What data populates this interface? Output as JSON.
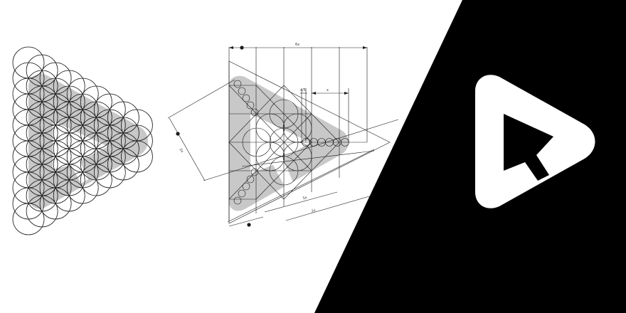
{
  "colors": {
    "background": "#ffffff",
    "panel_dark": "#000000",
    "shape_fill": "#c8c8c8",
    "line": "#1a1a1a",
    "logo_fill": "#ffffff"
  },
  "dimension_labels": {
    "top": "6x",
    "small": "x/5",
    "x": "x",
    "left": "2x",
    "bottom_5x": "5x",
    "bottom_2x": "2x"
  },
  "icons": {
    "grid_logo": "play-cursor-grid-icon",
    "construction_logo": "play-cursor-construction-icon",
    "final_logo": "play-cursor-logo-icon"
  }
}
